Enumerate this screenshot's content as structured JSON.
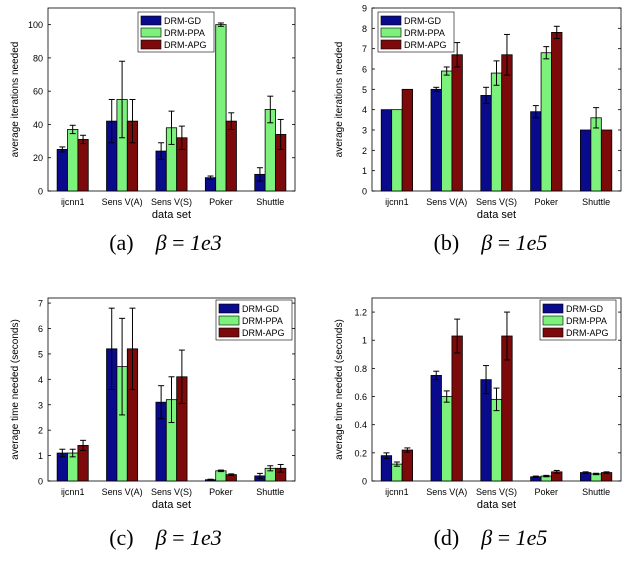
{
  "colors": {
    "DRM-GD": "#0a0a8c",
    "DRM-PPA": "#7cf27c",
    "DRM-APG": "#7c0a0a"
  },
  "chart_data": [
    {
      "type": "bar",
      "panel": "a",
      "caption": {
        "label": "(a)",
        "symbol": "β",
        "equals": "=",
        "value": "1e3"
      },
      "xlabel": "data set",
      "ylabel": "average iterations needed",
      "categories": [
        "ijcnn1",
        "Sens V(A)",
        "Sens V(S)",
        "Poker",
        "Shuttle"
      ],
      "ylim": [
        0,
        110
      ],
      "yticks": [
        "0",
        "20",
        "40",
        "60",
        "80",
        "100"
      ],
      "ytick_values": [
        0,
        20,
        40,
        60,
        80,
        100
      ],
      "legend": "top-center",
      "series": [
        {
          "name": "DRM-GD",
          "values": [
            25,
            42,
            24,
            8,
            10
          ],
          "errors": [
            1.5,
            13,
            5,
            1,
            4
          ]
        },
        {
          "name": "DRM-PPA",
          "values": [
            37,
            55,
            38,
            100,
            49
          ],
          "errors": [
            2.5,
            23,
            10,
            1,
            8
          ]
        },
        {
          "name": "DRM-APG",
          "values": [
            31,
            42,
            32,
            42,
            34
          ],
          "errors": [
            2.5,
            13,
            7,
            5,
            9
          ]
        }
      ]
    },
    {
      "type": "bar",
      "panel": "b",
      "caption": {
        "label": "(b)",
        "symbol": "β",
        "equals": "=",
        "value": "1e5"
      },
      "xlabel": "data set",
      "ylabel": "average iterations needed",
      "categories": [
        "ijcnn1",
        "Sens V(A)",
        "Sens V(S)",
        "Poker",
        "Shuttle"
      ],
      "ylim": [
        0,
        9
      ],
      "yticks": [
        "0",
        "1",
        "2",
        "3",
        "4",
        "5",
        "6",
        "7",
        "8",
        "9"
      ],
      "ytick_values": [
        0,
        1,
        2,
        3,
        4,
        5,
        6,
        7,
        8,
        9
      ],
      "legend": "top-left",
      "series": [
        {
          "name": "DRM-GD",
          "values": [
            4,
            5,
            4.7,
            3.9,
            3
          ],
          "errors": [
            0,
            0.1,
            0.4,
            0.3,
            0
          ]
        },
        {
          "name": "DRM-PPA",
          "values": [
            4,
            5.9,
            5.8,
            6.8,
            3.6
          ],
          "errors": [
            0,
            0.2,
            0.6,
            0.3,
            0.5
          ]
        },
        {
          "name": "DRM-APG",
          "values": [
            5,
            6.7,
            6.7,
            7.8,
            3
          ],
          "errors": [
            0,
            0.6,
            1.0,
            0.3,
            0
          ]
        }
      ]
    },
    {
      "type": "bar",
      "panel": "c",
      "caption": {
        "label": "(c)",
        "symbol": "β",
        "equals": "=",
        "value": "1e3"
      },
      "xlabel": "data set",
      "ylabel": "average time needed (seconds)",
      "categories": [
        "ijcnn1",
        "Sens V(A)",
        "Sens V(S)",
        "Poker",
        "Shuttle"
      ],
      "ylim": [
        0,
        7.2
      ],
      "yticks": [
        "0",
        "1",
        "2",
        "3",
        "4",
        "5",
        "6",
        "7"
      ],
      "ytick_values": [
        0,
        1,
        2,
        3,
        4,
        5,
        6,
        7
      ],
      "legend": "top-right",
      "series": [
        {
          "name": "DRM-GD",
          "values": [
            1.1,
            5.2,
            3.1,
            0.05,
            0.2
          ],
          "errors": [
            0.15,
            1.6,
            0.65,
            0.02,
            0.1
          ]
        },
        {
          "name": "DRM-PPA",
          "values": [
            1.1,
            4.5,
            3.2,
            0.4,
            0.5
          ],
          "errors": [
            0.15,
            1.9,
            0.9,
            0.03,
            0.1
          ]
        },
        {
          "name": "DRM-APG",
          "values": [
            1.4,
            5.2,
            4.1,
            0.25,
            0.5
          ],
          "errors": [
            0.2,
            1.6,
            1.05,
            0.03,
            0.15
          ]
        }
      ]
    },
    {
      "type": "bar",
      "panel": "d",
      "caption": {
        "label": "(d)",
        "symbol": "β",
        "equals": "=",
        "value": "1e5"
      },
      "xlabel": "data set",
      "ylabel": "average time needed (seconds)",
      "categories": [
        "ijcnn1",
        "Sens V(A)",
        "Sens V(S)",
        "Poker",
        "Shuttle"
      ],
      "ylim": [
        0,
        1.3
      ],
      "yticks": [
        "0",
        "0.2",
        "0.4",
        "0.6",
        "0.8",
        "1",
        "1.2"
      ],
      "ytick_values": [
        0,
        0.2,
        0.4,
        0.6,
        0.8,
        1,
        1.2
      ],
      "legend": "top-right",
      "series": [
        {
          "name": "DRM-GD",
          "values": [
            0.18,
            0.75,
            0.72,
            0.03,
            0.06
          ],
          "errors": [
            0.02,
            0.03,
            0.1,
            0.005,
            0.005
          ]
        },
        {
          "name": "DRM-PPA",
          "values": [
            0.12,
            0.6,
            0.58,
            0.035,
            0.05
          ],
          "errors": [
            0.015,
            0.04,
            0.08,
            0.005,
            0.005
          ]
        },
        {
          "name": "DRM-APG",
          "values": [
            0.22,
            1.03,
            1.03,
            0.065,
            0.06
          ],
          "errors": [
            0.015,
            0.12,
            0.17,
            0.01,
            0.005
          ]
        }
      ]
    }
  ]
}
